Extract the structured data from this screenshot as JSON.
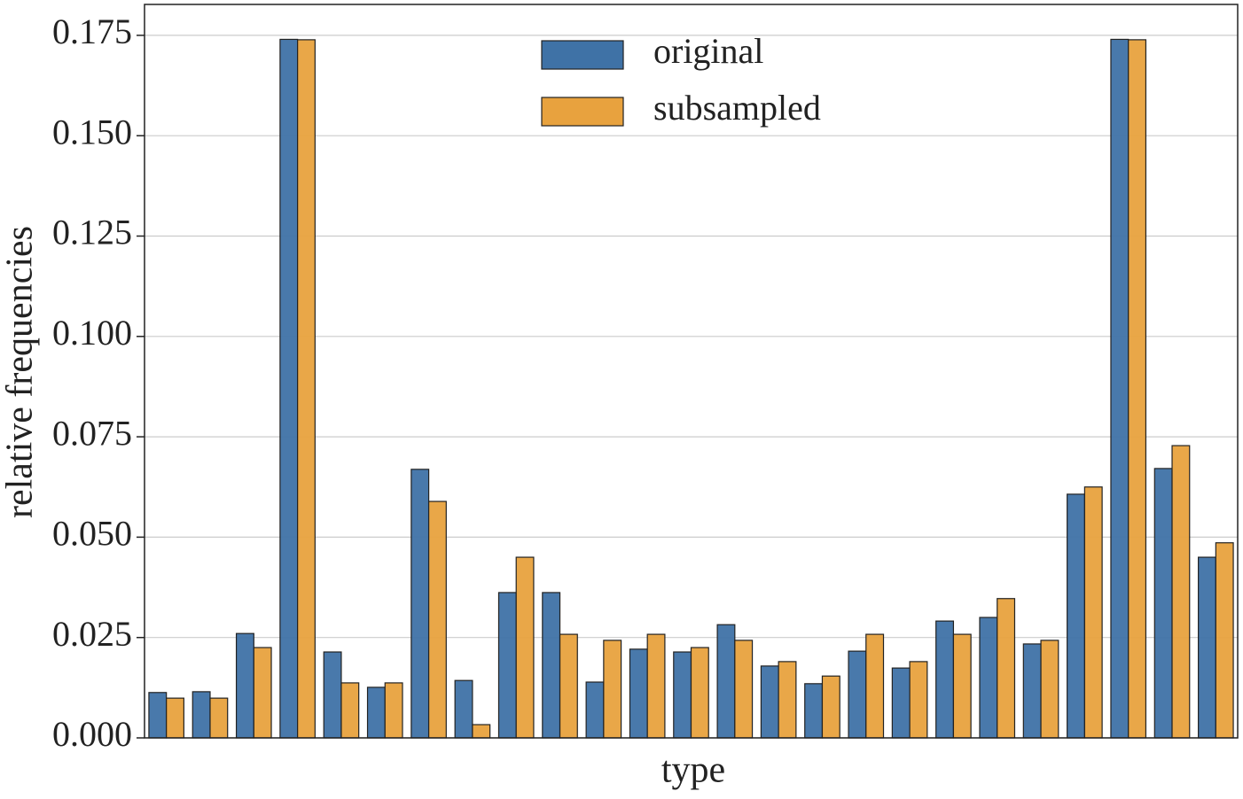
{
  "chart_data": {
    "type": "bar",
    "xlabel": "type",
    "ylabel": "relative frequencies",
    "categories": [
      null,
      null,
      null,
      null,
      null,
      null,
      null,
      null,
      null,
      null,
      null,
      null,
      null,
      null,
      null,
      null,
      null,
      null,
      null,
      null,
      null,
      null,
      null,
      null,
      null
    ],
    "series": [
      {
        "name": "original",
        "color": "#3f72a6",
        "values": [
          0.0113,
          0.0115,
          0.026,
          0.174,
          0.0214,
          0.0126,
          0.0669,
          0.0143,
          0.0362,
          0.0362,
          0.0139,
          0.0221,
          0.0214,
          0.0282,
          0.0179,
          0.0135,
          0.0216,
          0.0174,
          0.0291,
          0.03,
          0.0234,
          0.0607,
          0.174,
          0.0671,
          0.045
        ]
      },
      {
        "name": "subsampled",
        "color": "#e8a23e",
        "values": [
          0.0099,
          0.0099,
          0.0225,
          0.1739,
          0.0137,
          0.0137,
          0.0589,
          0.0033,
          0.045,
          0.0258,
          0.0243,
          0.0258,
          0.0225,
          0.0243,
          0.019,
          0.0154,
          0.0258,
          0.019,
          0.0258,
          0.0347,
          0.0243,
          0.0625,
          0.1739,
          0.0728,
          0.0486
        ]
      }
    ],
    "ylim": [
      0,
      0.1827
    ],
    "yticks": [
      {
        "value": 0,
        "label": "0.000"
      },
      {
        "value": 0.025,
        "label": "0.025"
      },
      {
        "value": 0.05,
        "label": "0.050"
      },
      {
        "value": 0.075,
        "label": "0.075"
      },
      {
        "value": 0.1,
        "label": "0.100"
      },
      {
        "value": 0.125,
        "label": "0.125"
      },
      {
        "value": 0.15,
        "label": "0.150"
      },
      {
        "value": 0.175,
        "label": "0.175"
      }
    ],
    "grid": true,
    "legend": "upper center"
  }
}
